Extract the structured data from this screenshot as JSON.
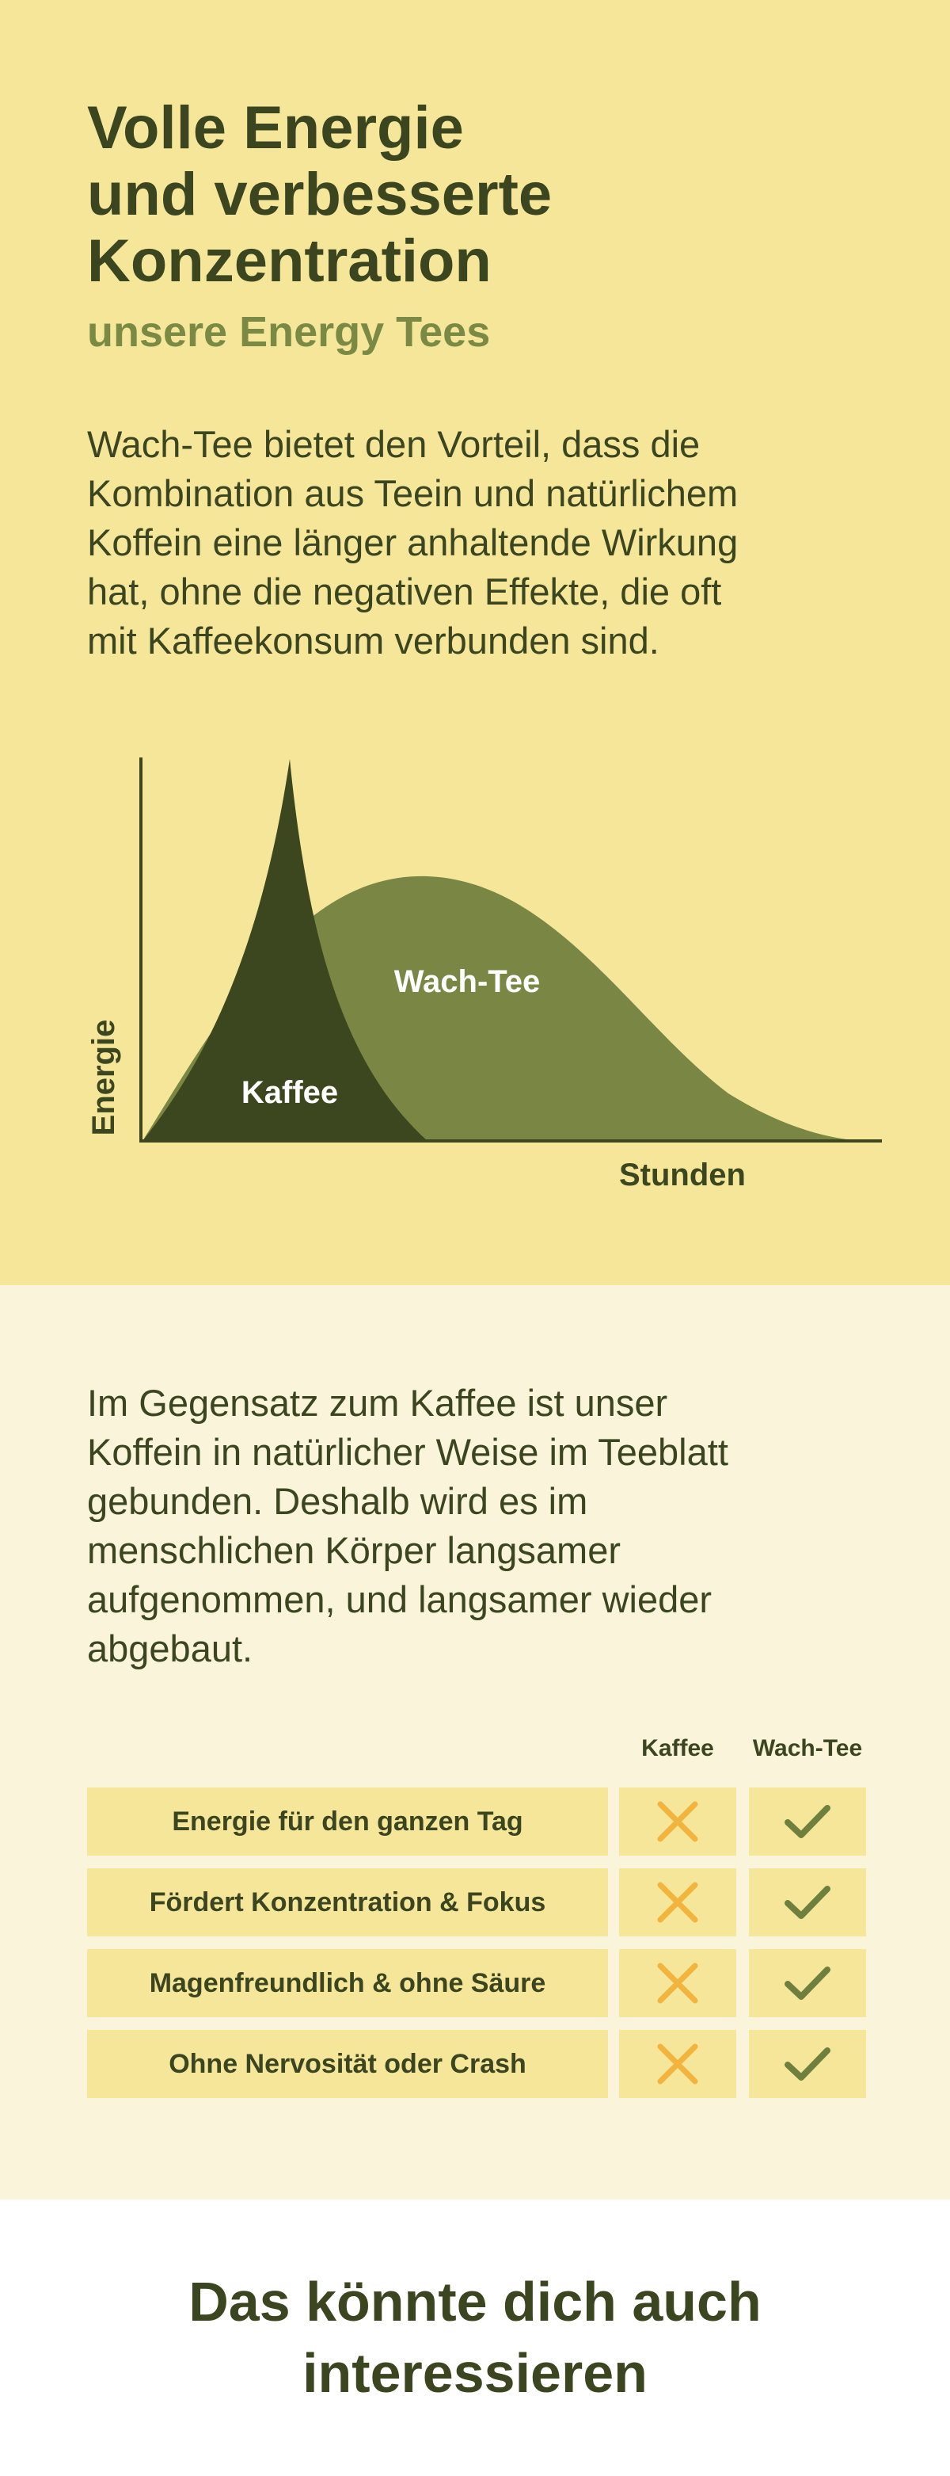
{
  "header": {
    "title_lines": [
      "Volle Energie",
      "und verbesserte",
      "Konzentration"
    ],
    "subtitle": "unsere Energy Tees"
  },
  "intro": {
    "lines": [
      "Wach-Tee bietet den Vorteil, dass die",
      "Kombination aus Teein und natürlichem",
      "Koffein eine länger anhaltende Wirkung",
      "hat, ohne die negativen Effekte, die oft",
      "mit Kaffeekonsum verbunden sind."
    ]
  },
  "illustration": {
    "y_label": "Energie",
    "x_label": "Stunden",
    "curves": [
      "Wach-Tee",
      "Kaffee"
    ]
  },
  "comparison": {
    "lines": [
      "Im Gegensatz zum Kaffee ist unser",
      "Koffein in natürlicher Weise im Teeblatt",
      "gebunden. Deshalb wird es im",
      "menschlichen Körper langsamer",
      "aufgenommen, und langsamer wieder",
      "abgebaut."
    ],
    "table": {
      "columns": [
        "Kaffee",
        "Wach-Tee"
      ],
      "rows": [
        "Energie für den ganzen Tag",
        "Fördert Konzentration & Fokus",
        "Magenfreundlich & ohne Säure",
        "Ohne Nervosität oder Crash"
      ]
    }
  },
  "footer": {
    "heading_lines": [
      "Das könnte dich auch",
      "interessieren"
    ]
  }
}
